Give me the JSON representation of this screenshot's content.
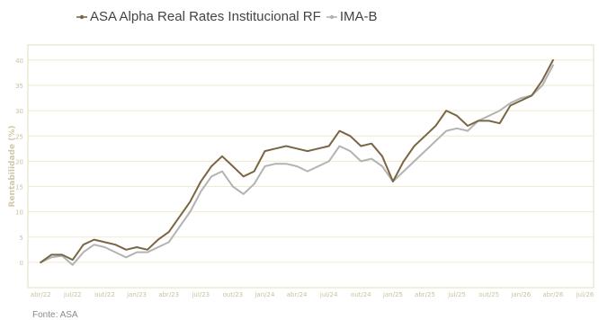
{
  "legend": {
    "asa_label": "ASA Alpha Real Rates Institucional RF",
    "ima_label": "IMA-B"
  },
  "source": "Fonte: ASA",
  "colors": {
    "asa": "#7a6644",
    "ima": "#b3b3b3",
    "frame": "#e2ddb8",
    "grid": "#efebcd",
    "tick": "#c8c1a0"
  },
  "chart_data": {
    "type": "line",
    "ylabel": "Rentabilidade (%)",
    "xlabel": "",
    "title": "",
    "ylim": [
      -5,
      43
    ],
    "yticks": [
      0,
      5,
      10,
      15,
      20,
      25,
      30,
      35,
      40
    ],
    "grid": true,
    "legend_position": "top",
    "x_tick_labels": [
      "abr/22",
      "jul/22",
      "out/22",
      "jan/23",
      "abr/23",
      "jul/23",
      "out/23",
      "jan/24",
      "abr/24",
      "jul/24",
      "out/24",
      "jan/25",
      "abr/25",
      "jul/25",
      "out/25",
      "jan/26",
      "abr/26",
      "jul/26"
    ],
    "x_dates": [
      "2022-04",
      "2022-05",
      "2022-06",
      "2022-07",
      "2022-08",
      "2022-09",
      "2022-10",
      "2022-11",
      "2022-12",
      "2023-01",
      "2023-02",
      "2023-03",
      "2023-04",
      "2023-05",
      "2023-06",
      "2023-07",
      "2023-08",
      "2023-09",
      "2023-10",
      "2023-11",
      "2023-12",
      "2024-01",
      "2024-02",
      "2024-03",
      "2024-04",
      "2024-05",
      "2024-06",
      "2024-07",
      "2024-08",
      "2024-09",
      "2024-10",
      "2024-11",
      "2024-12",
      "2025-01",
      "2025-02",
      "2025-03",
      "2025-04",
      "2025-05",
      "2025-06",
      "2025-07",
      "2025-08",
      "2025-09",
      "2025-10",
      "2025-11",
      "2025-12",
      "2026-01",
      "2026-02",
      "2026-03",
      "2026-04"
    ],
    "series": [
      {
        "name": "ASA Alpha Real Rates Institucional RF",
        "values": [
          0,
          1.5,
          1.5,
          0.5,
          3.5,
          4.5,
          4,
          3.5,
          2.5,
          3,
          2.5,
          4.5,
          6,
          9,
          12,
          16,
          19,
          21,
          19,
          17,
          18,
          22,
          22.5,
          23,
          22.5,
          22,
          22.5,
          23,
          26,
          25,
          23,
          23.5,
          21,
          16,
          20,
          23,
          25,
          27,
          30,
          29,
          27,
          28,
          28,
          27.5,
          31,
          32,
          33,
          36,
          40
        ]
      },
      {
        "name": "IMA-B",
        "values": [
          0,
          1,
          1.3,
          -0.5,
          2,
          3.5,
          3,
          2,
          1,
          2,
          2,
          3,
          4,
          7,
          10,
          14,
          17,
          18,
          15,
          13.5,
          15.5,
          19,
          19.5,
          19.5,
          19,
          18,
          19,
          20,
          23,
          22,
          20,
          20.5,
          19,
          16,
          18,
          20,
          22,
          24,
          26,
          26.5,
          26,
          28,
          29,
          30,
          31.5,
          32.5,
          33,
          35,
          39
        ]
      }
    ]
  }
}
